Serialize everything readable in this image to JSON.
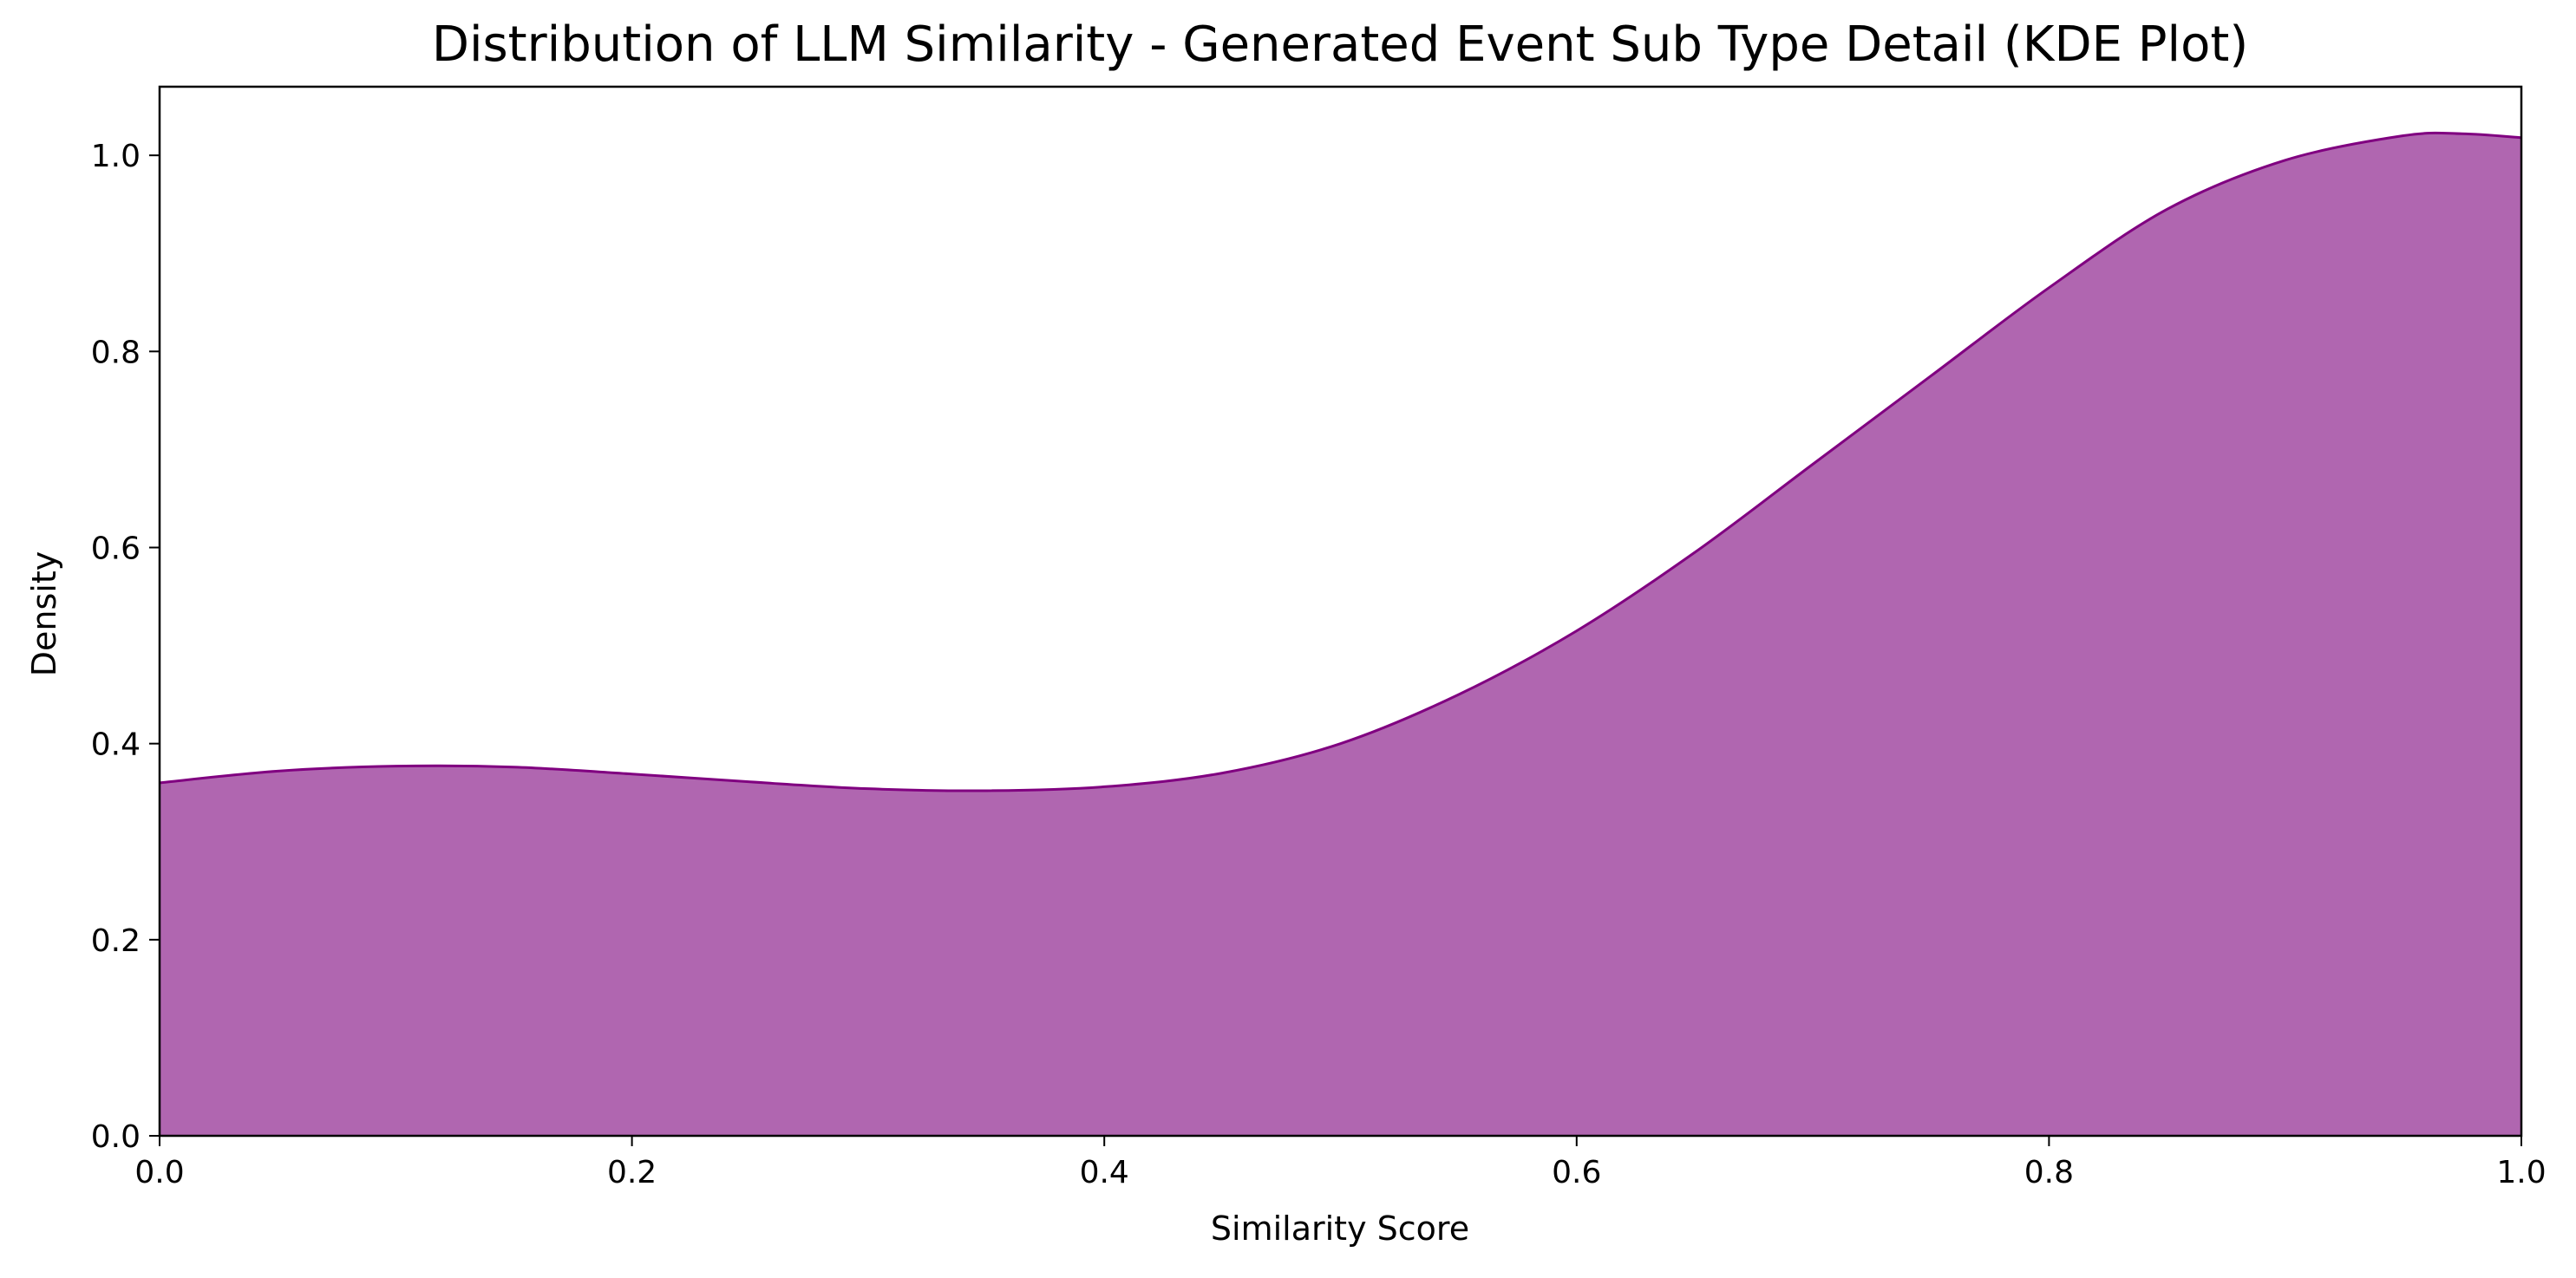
{
  "chart_data": {
    "type": "area",
    "title": "Distribution of LLM Similarity - Generated Event Sub Type Detail (KDE Plot)",
    "xlabel": "Similarity Score",
    "ylabel": "Density",
    "xlim": [
      0.0,
      1.0
    ],
    "ylim": [
      0.0,
      1.07
    ],
    "x_ticks": [
      "0.0",
      "0.2",
      "0.4",
      "0.6",
      "0.8",
      "1.0"
    ],
    "y_ticks": [
      "0.0",
      "0.2",
      "0.4",
      "0.6",
      "0.8",
      "1.0"
    ],
    "grid": false,
    "legend": "none",
    "fill_color": "#b066b0",
    "line_color": "#800080",
    "series": [
      {
        "x": [
          0.0,
          0.05,
          0.1,
          0.15,
          0.2,
          0.25,
          0.3,
          0.35,
          0.4,
          0.45,
          0.5,
          0.55,
          0.6,
          0.65,
          0.7,
          0.75,
          0.8,
          0.85,
          0.9,
          0.95,
          0.975,
          1.0
        ],
        "y": [
          0.36,
          0.372,
          0.377,
          0.376,
          0.369,
          0.361,
          0.354,
          0.352,
          0.356,
          0.37,
          0.4,
          0.45,
          0.515,
          0.595,
          0.685,
          0.775,
          0.865,
          0.945,
          0.995,
          1.02,
          1.022,
          1.018
        ]
      }
    ]
  }
}
